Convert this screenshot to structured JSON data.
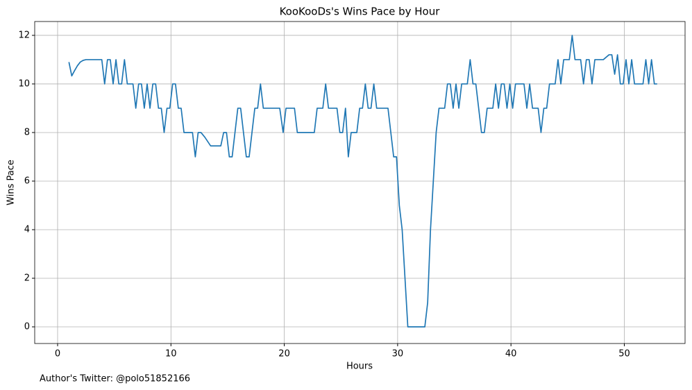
{
  "chart_data": {
    "type": "line",
    "title": "KooKooDs's Wins Pace by Hour",
    "xlabel": "Hours",
    "ylabel": "Wins Pace",
    "footnote": "Author's Twitter: @polo51852166",
    "x": [
      1,
      1.25,
      1.5,
      1.75,
      2,
      2.25,
      2.5,
      3,
      3.5,
      3.9,
      4.15,
      4.4,
      4.65,
      4.9,
      5.15,
      5.4,
      5.65,
      5.9,
      6.15,
      6.4,
      6.65,
      6.9,
      7.15,
      7.4,
      7.65,
      7.9,
      8.15,
      8.4,
      8.65,
      8.9,
      9.15,
      9.4,
      9.65,
      9.9,
      10.15,
      10.4,
      10.65,
      10.9,
      11.15,
      11.4,
      11.65,
      11.9,
      12.15,
      12.4,
      12.65,
      13,
      13.5,
      14,
      14.4,
      14.65,
      14.9,
      15.15,
      15.4,
      15.65,
      15.9,
      16.15,
      16.4,
      16.65,
      16.9,
      17.15,
      17.4,
      17.65,
      17.9,
      18.15,
      18.4,
      19.6,
      19.9,
      20.15,
      20.4,
      20.65,
      20.9,
      21.15,
      21.4,
      22.65,
      22.9,
      23.15,
      23.4,
      23.65,
      23.9,
      24.15,
      24.4,
      24.65,
      24.9,
      25.15,
      25.4,
      25.65,
      25.9,
      26.15,
      26.4,
      26.65,
      26.9,
      27.15,
      27.4,
      27.65,
      27.9,
      28.15,
      29.15,
      29.4,
      29.65,
      29.9,
      30.15,
      30.4,
      30.65,
      30.9,
      32.4,
      32.65,
      32.9,
      33.15,
      33.4,
      33.65,
      33.9,
      34.15,
      34.4,
      34.65,
      34.9,
      35.15,
      35.4,
      35.65,
      35.9,
      36.15,
      36.4,
      36.65,
      36.9,
      37.15,
      37.4,
      37.65,
      37.9,
      38.15,
      38.4,
      38.65,
      38.9,
      39.15,
      39.4,
      39.65,
      39.9,
      40.15,
      40.4,
      40.65,
      40.9,
      41.15,
      41.4,
      41.65,
      41.9,
      42.15,
      42.4,
      42.65,
      42.9,
      43.15,
      43.4,
      43.65,
      43.9,
      44.15,
      44.4,
      44.65,
      44.9,
      45.15,
      45.4,
      45.65,
      45.9,
      46.15,
      46.4,
      46.65,
      46.9,
      47.15,
      47.4,
      47.65,
      47.9,
      48.15,
      48.4,
      48.65,
      48.9,
      49.15,
      49.4,
      49.65,
      49.9,
      50.15,
      50.4,
      50.65,
      50.9,
      51.15,
      51.4,
      51.65,
      51.9,
      52.15,
      52.4,
      52.65,
      52.9
    ],
    "series": [
      {
        "color": "#1f77b4",
        "values": [
          10.9,
          10.33,
          10.55,
          10.75,
          10.9,
          10.97,
          11,
          11,
          11,
          11,
          10,
          11,
          11,
          10,
          11,
          10,
          10,
          11,
          10,
          10,
          10,
          9,
          10,
          10,
          9,
          10,
          9,
          10,
          10,
          9,
          9,
          8,
          9,
          9,
          10,
          10,
          9,
          9,
          8,
          8,
          8,
          8,
          7,
          8,
          8,
          7.8,
          7.45,
          7.45,
          7.45,
          8,
          8,
          7,
          7,
          8,
          9,
          9,
          8,
          7,
          7,
          8,
          9,
          9,
          10,
          9,
          9,
          9,
          8,
          9,
          9,
          9,
          9,
          8,
          8,
          8,
          9,
          9,
          9,
          10,
          9,
          9,
          9,
          9,
          8,
          8,
          9,
          7,
          8,
          8,
          8,
          9,
          9,
          10,
          9,
          9,
          10,
          9,
          9,
          8,
          7,
          7,
          5,
          4,
          2,
          0,
          0,
          1,
          4,
          6,
          8,
          9,
          9,
          9,
          10,
          10,
          9,
          10,
          9,
          10,
          10,
          10,
          11,
          10,
          10,
          9,
          8,
          8,
          9,
          9,
          9,
          10,
          9,
          10,
          10,
          9,
          10,
          9,
          10,
          10,
          10,
          10,
          9,
          10,
          9,
          9,
          9,
          8,
          9,
          9,
          10,
          10,
          10,
          11,
          10,
          11,
          11,
          11,
          12,
          11,
          11,
          11,
          10,
          11,
          11,
          10,
          11,
          11,
          11,
          11,
          11.1,
          11.2,
          11.2,
          10.4,
          11.2,
          10,
          10,
          11,
          10,
          11,
          10,
          10,
          10,
          10,
          11,
          10,
          11,
          10,
          10
        ]
      }
    ],
    "xlim": [
      -2.02,
      55.36
    ],
    "ylim": [
      -0.686,
      12.57
    ],
    "xticks": [
      0,
      10,
      20,
      30,
      40,
      50
    ],
    "yticks": [
      0,
      2,
      4,
      6,
      8,
      10,
      12
    ],
    "grid": true
  }
}
